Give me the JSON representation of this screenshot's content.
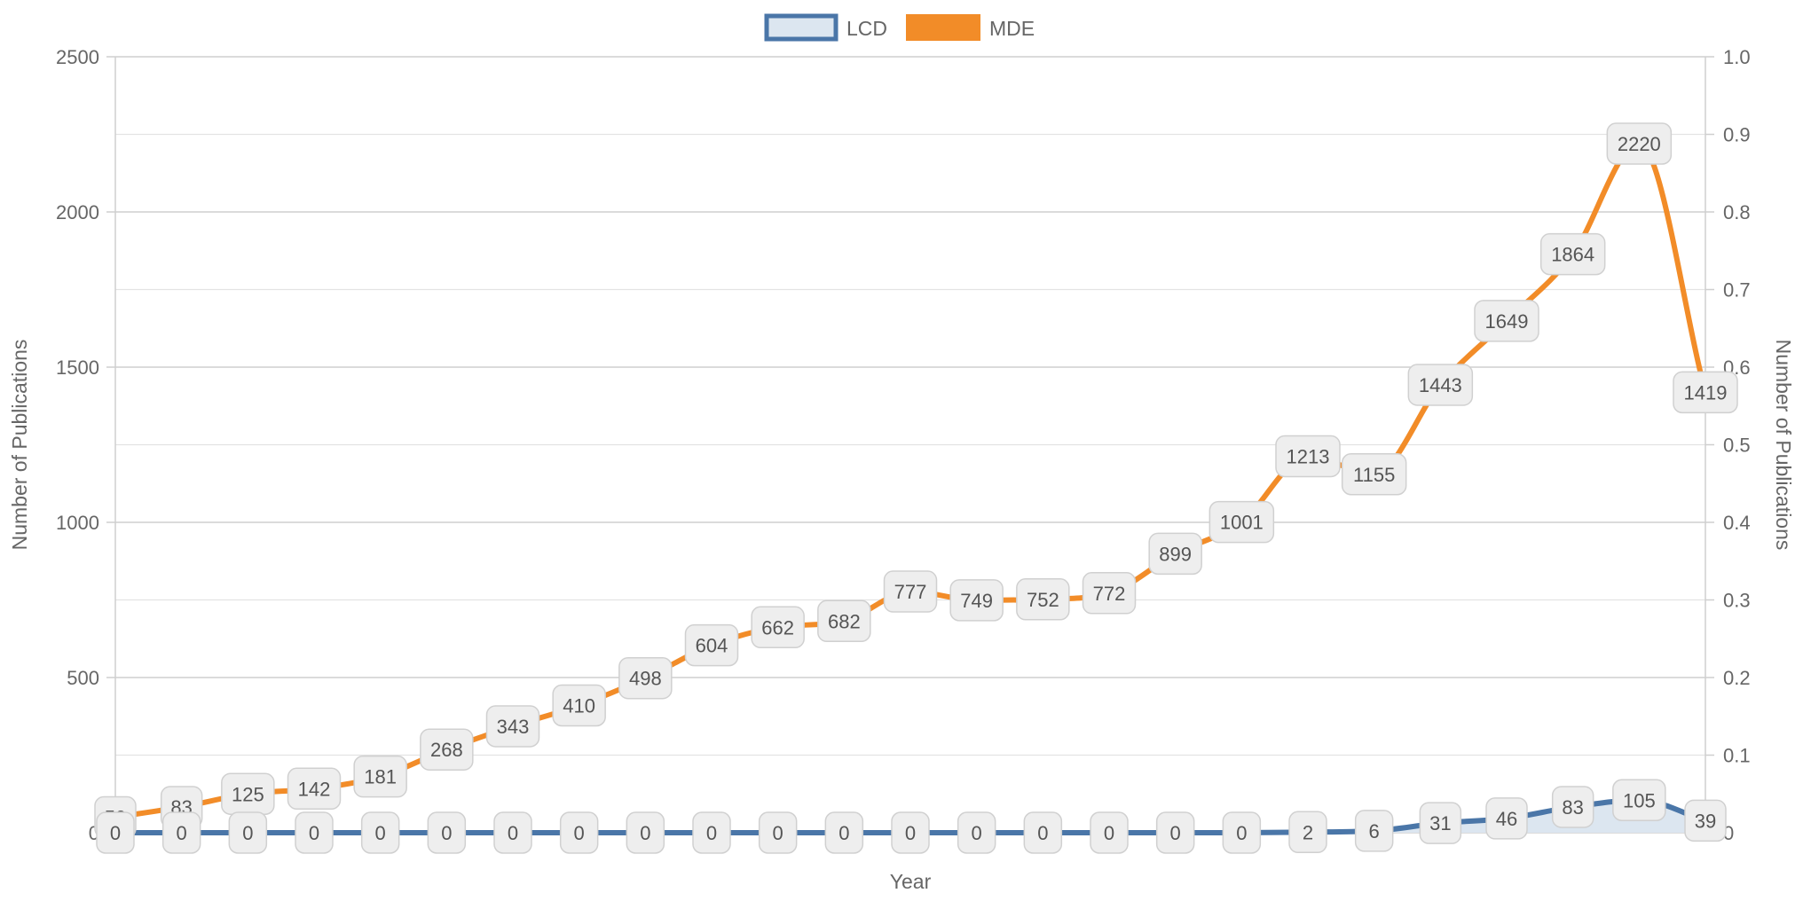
{
  "chart_data": {
    "type": "line",
    "xlabel": "Year",
    "ylabel_left": "Number of Publications",
    "ylabel_right": "Number of Publications",
    "y_left_range": [
      0,
      2500
    ],
    "y_left_ticks": [
      "0",
      "500",
      "1000",
      "1500",
      "2000",
      "2500"
    ],
    "y_right_range": [
      0,
      1.0
    ],
    "y_right_ticks": [
      "0",
      "0.1",
      "0.2",
      "0.3",
      "0.4",
      "0.5",
      "0.6",
      "0.7",
      "0.8",
      "0.9",
      "1.0"
    ],
    "x_tick_labels_visible": false,
    "grid": true,
    "legend_position": "top-center",
    "series": [
      {
        "name": "LCD",
        "color": "#4a76a8",
        "fill": "#dce6f0",
        "area": true,
        "values": [
          0,
          0,
          0,
          0,
          0,
          0,
          0,
          0,
          0,
          0,
          0,
          0,
          0,
          0,
          0,
          0,
          0,
          0,
          2,
          6,
          31,
          46,
          83,
          105,
          39
        ],
        "labels": [
          "0",
          "0",
          "0",
          "0",
          "0",
          "0",
          "0",
          "0",
          "0",
          "0",
          "0",
          "0",
          "0",
          "0",
          "0",
          "0",
          "0",
          "0",
          "2",
          "6",
          "31",
          "46",
          "83",
          "105",
          "39"
        ]
      },
      {
        "name": "MDE",
        "color": "#f28c28",
        "area": false,
        "values": [
          50,
          83,
          125,
          142,
          181,
          268,
          343,
          410,
          498,
          604,
          662,
          682,
          777,
          749,
          752,
          772,
          899,
          1001,
          1213,
          1155,
          1443,
          1649,
          1864,
          2220,
          1419
        ],
        "labels": [
          "50",
          "83",
          "125",
          "142",
          "181",
          "268",
          "343",
          "410",
          "498",
          "604",
          "662",
          "682",
          "777",
          "749",
          "752",
          "772",
          "899",
          "1001",
          "1213",
          "1155",
          "1443",
          "1649",
          "1864",
          "2220",
          "1419"
        ]
      }
    ]
  }
}
